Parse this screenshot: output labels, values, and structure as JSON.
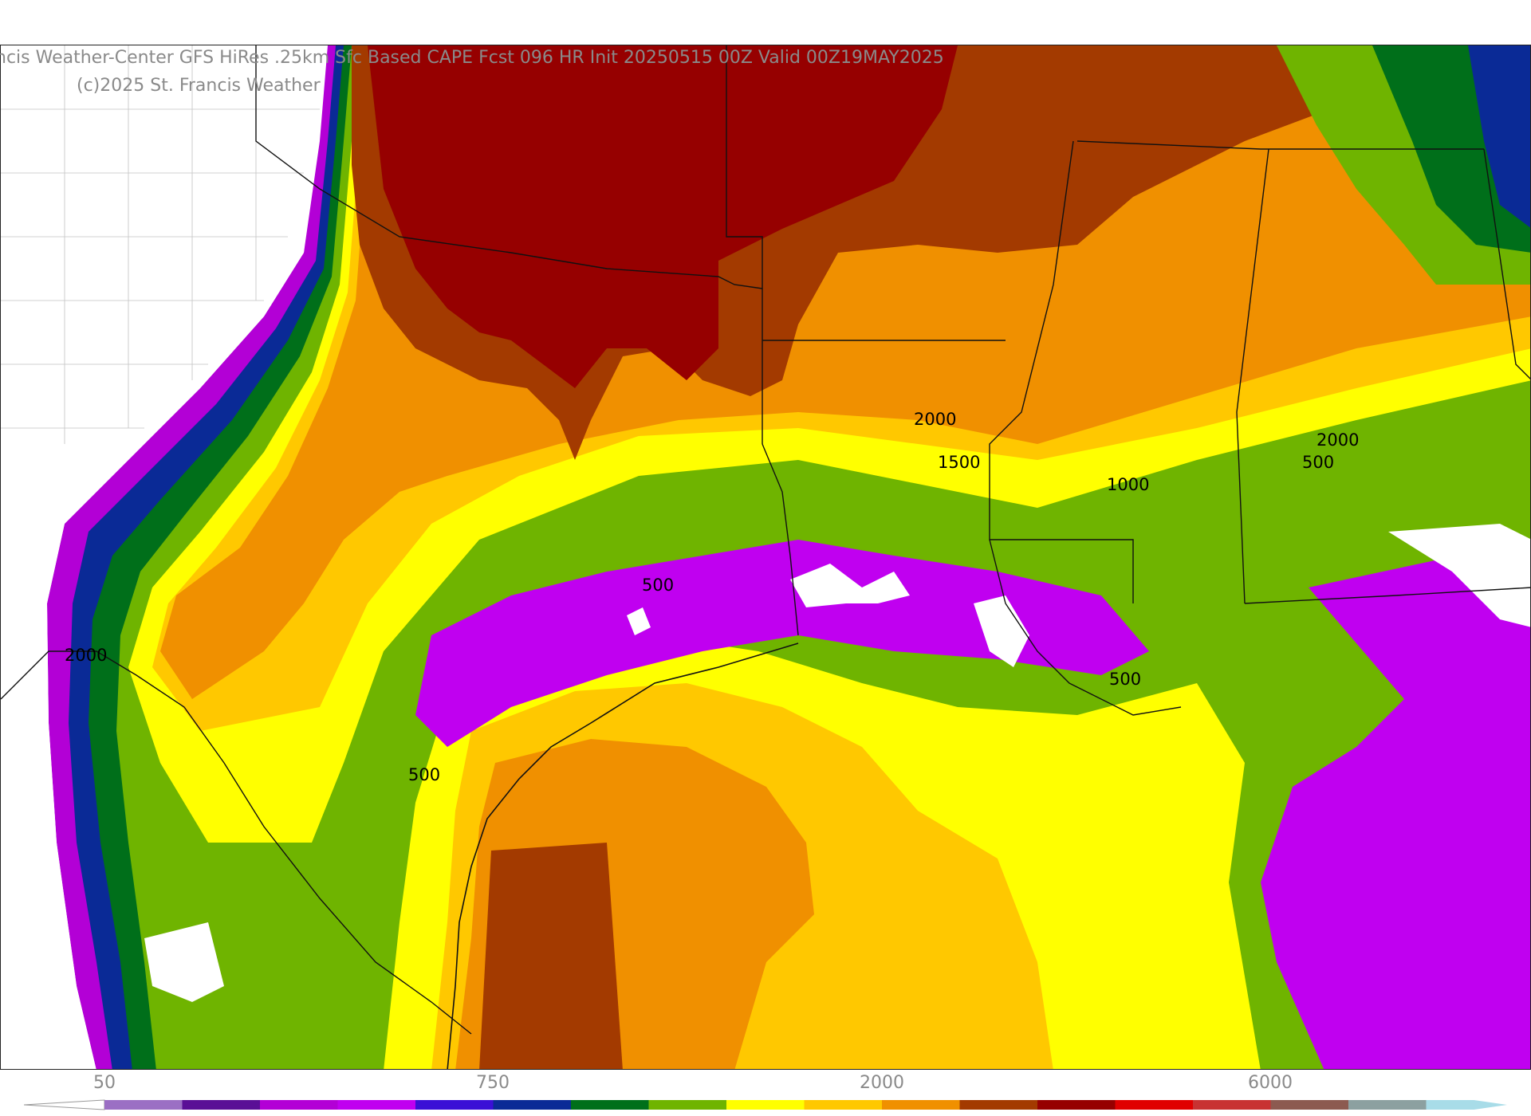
{
  "header": {
    "title": "ncis Weather-Center GFS HiRes .25km Sfc Based CAPE  Fcst 096 HR Init 20250515 00Z  Valid 00Z19MAY2025",
    "copyright": "(c)2025 St. Francis Weather"
  },
  "map": {
    "contour_labels": [
      "2000",
      "1500",
      "1000",
      "2000",
      "500",
      "500",
      "500",
      "500",
      "2000"
    ]
  },
  "colorbar": {
    "tick_labels": [
      "50",
      "750",
      "2000",
      "6000"
    ],
    "colors": [
      "#9b6fc4",
      "#5a0f96",
      "#b300d6",
      "#c000f0",
      "#3a0fd6",
      "#0a2a96",
      "#006f1a",
      "#6fb400",
      "#ffff00",
      "#ffc800",
      "#f09000",
      "#a33a00",
      "#960000",
      "#e00000",
      "#c83232",
      "#8c5a50",
      "#8ca0a0",
      "#a8dce8"
    ]
  }
}
